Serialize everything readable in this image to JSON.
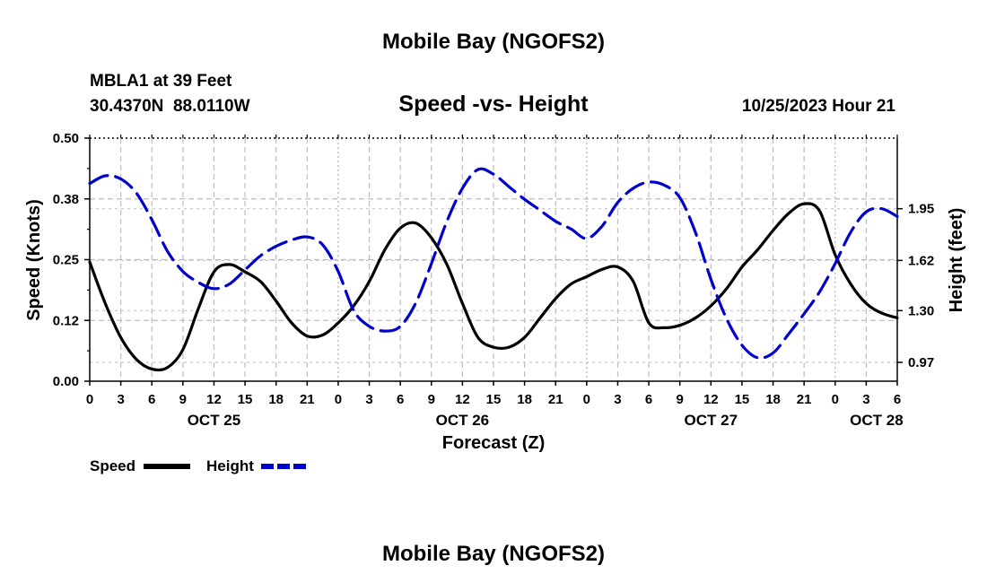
{
  "page": {
    "main_title": "Mobile Bay (NGOFS2)",
    "footer_title": "Mobile Bay (NGOFS2)"
  },
  "station": {
    "name": "MBLA1 at 39 Feet",
    "coords": "30.4370N  88.0110W",
    "timestamp": "10/25/2023 Hour 21"
  },
  "chart_data": {
    "type": "line",
    "title": "Speed -vs- Height",
    "xlabel": "Forecast (Z)",
    "ylabel_left": "Speed (Knots)",
    "ylabel_right": "Height (feet)",
    "x_unit": "hours since OCT 25 00Z",
    "xlim": [
      0,
      78
    ],
    "ylim_left": [
      0,
      0.5
    ],
    "ylim_right": [
      0.85,
      2.4
    ],
    "x_ticks": [
      {
        "h": 0,
        "label": "0"
      },
      {
        "h": 3,
        "label": "3"
      },
      {
        "h": 6,
        "label": "6"
      },
      {
        "h": 9,
        "label": "9"
      },
      {
        "h": 12,
        "label": "12"
      },
      {
        "h": 15,
        "label": "15"
      },
      {
        "h": 18,
        "label": "18"
      },
      {
        "h": 21,
        "label": "21"
      },
      {
        "h": 24,
        "label": "0"
      },
      {
        "h": 27,
        "label": "3"
      },
      {
        "h": 30,
        "label": "6"
      },
      {
        "h": 33,
        "label": "9"
      },
      {
        "h": 36,
        "label": "12"
      },
      {
        "h": 39,
        "label": "15"
      },
      {
        "h": 42,
        "label": "18"
      },
      {
        "h": 45,
        "label": "21"
      },
      {
        "h": 48,
        "label": "0"
      },
      {
        "h": 51,
        "label": "3"
      },
      {
        "h": 54,
        "label": "6"
      },
      {
        "h": 57,
        "label": "9"
      },
      {
        "h": 60,
        "label": "12"
      },
      {
        "h": 63,
        "label": "15"
      },
      {
        "h": 66,
        "label": "18"
      },
      {
        "h": 69,
        "label": "21"
      },
      {
        "h": 72,
        "label": "0"
      },
      {
        "h": 75,
        "label": "3"
      },
      {
        "h": 78,
        "label": "6"
      }
    ],
    "date_labels": [
      {
        "h": 12,
        "label": "OCT 25"
      },
      {
        "h": 36,
        "label": "OCT 26"
      },
      {
        "h": 60,
        "label": "OCT 27"
      },
      {
        "h": 76,
        "label": "OCT 28"
      }
    ],
    "y_ticks_left": [
      {
        "v": 0.0,
        "label": "0.00"
      },
      {
        "v": 0.125,
        "label": "0.12"
      },
      {
        "v": 0.25,
        "label": "0.25"
      },
      {
        "v": 0.375,
        "label": "0.38"
      },
      {
        "v": 0.5,
        "label": "0.50"
      }
    ],
    "y_ticks_right": [
      {
        "v": 0.97,
        "label": "0.97"
      },
      {
        "v": 1.3,
        "label": "1.30"
      },
      {
        "v": 1.62,
        "label": "1.62"
      },
      {
        "v": 1.95,
        "label": "1.95"
      }
    ],
    "series": [
      {
        "name": "Speed",
        "axis": "left",
        "color": "#000000",
        "style": "solid",
        "x": [
          0,
          1.5,
          3,
          4.5,
          6,
          7.5,
          9,
          10.5,
          12,
          13.5,
          15,
          16.5,
          18,
          19.5,
          21,
          22.5,
          24,
          25.5,
          27,
          28.5,
          30,
          31.5,
          33,
          34.5,
          36,
          37.5,
          39,
          40.5,
          42,
          43.5,
          45,
          46.5,
          48,
          49.5,
          51,
          52.5,
          54,
          55.5,
          57,
          58.5,
          60,
          61.5,
          63,
          64.5,
          66,
          67.5,
          69,
          70.5,
          72,
          73.5,
          75,
          76.5,
          78
        ],
        "values": [
          0.245,
          0.16,
          0.09,
          0.045,
          0.025,
          0.028,
          0.065,
          0.15,
          0.225,
          0.24,
          0.225,
          0.205,
          0.165,
          0.12,
          0.093,
          0.095,
          0.12,
          0.155,
          0.205,
          0.27,
          0.315,
          0.325,
          0.295,
          0.24,
          0.16,
          0.09,
          0.07,
          0.07,
          0.09,
          0.13,
          0.17,
          0.2,
          0.215,
          0.23,
          0.235,
          0.205,
          0.12,
          0.11,
          0.115,
          0.13,
          0.155,
          0.19,
          0.235,
          0.27,
          0.31,
          0.345,
          0.365,
          0.35,
          0.26,
          0.2,
          0.16,
          0.14,
          0.13
        ]
      },
      {
        "name": "Height",
        "axis": "right",
        "color": "#0000cc",
        "style": "dashed",
        "x": [
          0,
          1.5,
          3,
          4.5,
          6,
          7.5,
          9,
          10.5,
          12,
          13.5,
          15,
          16.5,
          18,
          19.5,
          21,
          22.5,
          24,
          25.5,
          27,
          28.5,
          30,
          31.5,
          33,
          34.5,
          36,
          37.5,
          39,
          40.5,
          42,
          43.5,
          45,
          46.5,
          48,
          49.5,
          51,
          52.5,
          54,
          55.5,
          57,
          58.5,
          60,
          61.5,
          63,
          64.5,
          66,
          67.5,
          69,
          70.5,
          72,
          73.5,
          75,
          76.5,
          78
        ],
        "values": [
          2.11,
          2.16,
          2.14,
          2.05,
          1.88,
          1.68,
          1.55,
          1.48,
          1.44,
          1.47,
          1.56,
          1.65,
          1.71,
          1.75,
          1.77,
          1.72,
          1.55,
          1.3,
          1.2,
          1.17,
          1.2,
          1.35,
          1.6,
          1.87,
          2.08,
          2.2,
          2.17,
          2.09,
          2.01,
          1.94,
          1.87,
          1.82,
          1.76,
          1.84,
          1.99,
          2.08,
          2.12,
          2.1,
          2.02,
          1.8,
          1.5,
          1.25,
          1.08,
          1.0,
          1.03,
          1.15,
          1.28,
          1.42,
          1.6,
          1.8,
          1.93,
          1.95,
          1.9
        ]
      }
    ],
    "legend": [
      {
        "label": "Speed",
        "color": "#000000",
        "style": "solid"
      },
      {
        "label": "Height",
        "color": "#0000cc",
        "style": "dashed"
      }
    ],
    "legend_position": "bottom-left",
    "grid": true
  }
}
